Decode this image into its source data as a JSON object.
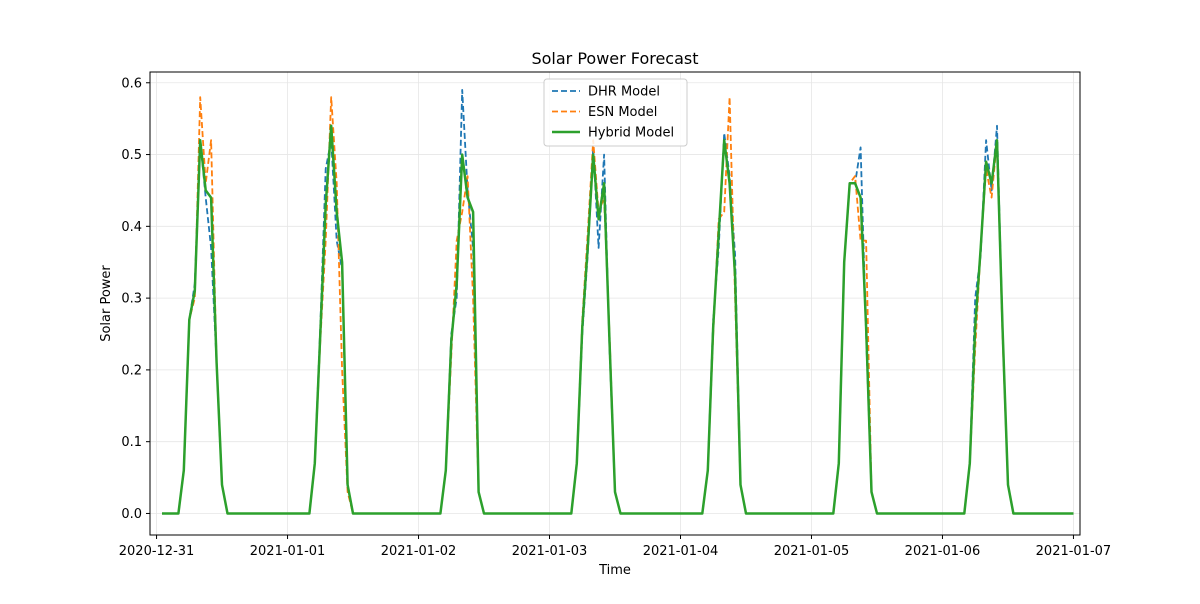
{
  "chart_data": {
    "type": "line",
    "title": "Solar Power Forecast",
    "xlabel": "Time",
    "ylabel": "Solar Power",
    "grid": true,
    "legend_position": "top-center",
    "x_unit": "hours since 2020-12-31 00:00",
    "xlim": [
      -1.2,
      169.2
    ],
    "ylim": [
      -0.03,
      0.615
    ],
    "x_ticks": [
      {
        "value": 0,
        "label": "2020-12-31"
      },
      {
        "value": 24,
        "label": "2021-01-01"
      },
      {
        "value": 48,
        "label": "2021-01-02"
      },
      {
        "value": 72,
        "label": "2021-01-03"
      },
      {
        "value": 96,
        "label": "2021-01-04"
      },
      {
        "value": 120,
        "label": "2021-01-05"
      },
      {
        "value": 144,
        "label": "2021-01-06"
      },
      {
        "value": 168,
        "label": "2021-01-07"
      }
    ],
    "y_ticks": [
      {
        "value": 0.0,
        "label": "0.0"
      },
      {
        "value": 0.1,
        "label": "0.1"
      },
      {
        "value": 0.2,
        "label": "0.2"
      },
      {
        "value": 0.3,
        "label": "0.3"
      },
      {
        "value": 0.4,
        "label": "0.4"
      },
      {
        "value": 0.5,
        "label": "0.5"
      },
      {
        "value": 0.6,
        "label": "0.6"
      }
    ],
    "series": [
      {
        "name": "DHR Model",
        "color": "#1f77b4",
        "style": "dashed",
        "points": [
          [
            1,
            0
          ],
          [
            3,
            0
          ],
          [
            4,
            0
          ],
          [
            5,
            0.06
          ],
          [
            6,
            0.27
          ],
          [
            7,
            0.32
          ],
          [
            8,
            0.52
          ],
          [
            9,
            0.44
          ],
          [
            10,
            0.37
          ],
          [
            11,
            0.21
          ],
          [
            12,
            0.04
          ],
          [
            13,
            0
          ],
          [
            16,
            0
          ],
          [
            20,
            0
          ],
          [
            24,
            0
          ],
          [
            28,
            0
          ],
          [
            29,
            0.07
          ],
          [
            30,
            0.26
          ],
          [
            31,
            0.48
          ],
          [
            32,
            0.52
          ],
          [
            33,
            0.38
          ],
          [
            34,
            0.34
          ],
          [
            35,
            0.04
          ],
          [
            36,
            0
          ],
          [
            40,
            0
          ],
          [
            44,
            0
          ],
          [
            48,
            0
          ],
          [
            52,
            0
          ],
          [
            53,
            0.06
          ],
          [
            54,
            0.25
          ],
          [
            55,
            0.3
          ],
          [
            56,
            0.59
          ],
          [
            57,
            0.45
          ],
          [
            58,
            0.37
          ],
          [
            59,
            0.03
          ],
          [
            60,
            0
          ],
          [
            64,
            0
          ],
          [
            68,
            0
          ],
          [
            72,
            0
          ],
          [
            76,
            0
          ],
          [
            77,
            0.07
          ],
          [
            78,
            0.25
          ],
          [
            79,
            0.36
          ],
          [
            80,
            0.51
          ],
          [
            81,
            0.37
          ],
          [
            82,
            0.5
          ],
          [
            83,
            0.23
          ],
          [
            84,
            0.03
          ],
          [
            85,
            0
          ],
          [
            88,
            0
          ],
          [
            92,
            0
          ],
          [
            96,
            0
          ],
          [
            100,
            0
          ],
          [
            101,
            0.06
          ],
          [
            102,
            0.27
          ],
          [
            103,
            0.37
          ],
          [
            104,
            0.53
          ],
          [
            105,
            0.47
          ],
          [
            106,
            0.36
          ],
          [
            107,
            0.04
          ],
          [
            108,
            0
          ],
          [
            112,
            0
          ],
          [
            116,
            0
          ],
          [
            120,
            0
          ],
          [
            124,
            0
          ],
          [
            125,
            0.07
          ],
          [
            126,
            0.35
          ],
          [
            127,
            0.46
          ],
          [
            128,
            0.46
          ],
          [
            129,
            0.51
          ],
          [
            130,
            0.25
          ],
          [
            131,
            0.03
          ],
          [
            132,
            0
          ],
          [
            136,
            0
          ],
          [
            140,
            0
          ],
          [
            144,
            0
          ],
          [
            148,
            0
          ],
          [
            149,
            0.07
          ],
          [
            150,
            0.3
          ],
          [
            151,
            0.36
          ],
          [
            152,
            0.52
          ],
          [
            153,
            0.45
          ],
          [
            154,
            0.54
          ],
          [
            155,
            0.26
          ],
          [
            156,
            0.04
          ],
          [
            157,
            0
          ],
          [
            160,
            0
          ],
          [
            164,
            0
          ],
          [
            168,
            0
          ]
        ]
      },
      {
        "name": "ESN Model",
        "color": "#ff7f0e",
        "style": "dashed",
        "points": [
          [
            1,
            0
          ],
          [
            3,
            0
          ],
          [
            4,
            0
          ],
          [
            5,
            0.06
          ],
          [
            6,
            0.27
          ],
          [
            7,
            0.3
          ],
          [
            8,
            0.58
          ],
          [
            9,
            0.46
          ],
          [
            10,
            0.52
          ],
          [
            11,
            0.21
          ],
          [
            12,
            0.04
          ],
          [
            13,
            0
          ],
          [
            16,
            0
          ],
          [
            20,
            0
          ],
          [
            24,
            0
          ],
          [
            28,
            0
          ],
          [
            29,
            0.07
          ],
          [
            30,
            0.24
          ],
          [
            31,
            0.38
          ],
          [
            32,
            0.58
          ],
          [
            33,
            0.46
          ],
          [
            34,
            0.2
          ],
          [
            35,
            0.03
          ],
          [
            36,
            0
          ],
          [
            40,
            0
          ],
          [
            44,
            0
          ],
          [
            48,
            0
          ],
          [
            52,
            0
          ],
          [
            53,
            0.06
          ],
          [
            54,
            0.22
          ],
          [
            55,
            0.38
          ],
          [
            56,
            0.42
          ],
          [
            57,
            0.47
          ],
          [
            58,
            0.3
          ],
          [
            59,
            0.03
          ],
          [
            60,
            0
          ],
          [
            64,
            0
          ],
          [
            68,
            0
          ],
          [
            72,
            0
          ],
          [
            76,
            0
          ],
          [
            77,
            0.07
          ],
          [
            78,
            0.27
          ],
          [
            79,
            0.39
          ],
          [
            80,
            0.52
          ],
          [
            81,
            0.42
          ],
          [
            82,
            0.44
          ],
          [
            83,
            0.25
          ],
          [
            84,
            0.03
          ],
          [
            85,
            0
          ],
          [
            88,
            0
          ],
          [
            92,
            0
          ],
          [
            96,
            0
          ],
          [
            100,
            0
          ],
          [
            101,
            0.06
          ],
          [
            102,
            0.25
          ],
          [
            103,
            0.41
          ],
          [
            104,
            0.42
          ],
          [
            105,
            0.58
          ],
          [
            106,
            0.3
          ],
          [
            107,
            0.04
          ],
          [
            108,
            0
          ],
          [
            112,
            0
          ],
          [
            116,
            0
          ],
          [
            120,
            0
          ],
          [
            124,
            0
          ],
          [
            125,
            0.07
          ],
          [
            126,
            0.35
          ],
          [
            127,
            0.46
          ],
          [
            128,
            0.47
          ],
          [
            129,
            0.38
          ],
          [
            130,
            0.38
          ],
          [
            131,
            0.03
          ],
          [
            132,
            0
          ],
          [
            136,
            0
          ],
          [
            140,
            0
          ],
          [
            144,
            0
          ],
          [
            148,
            0
          ],
          [
            149,
            0.07
          ],
          [
            150,
            0.23
          ],
          [
            151,
            0.37
          ],
          [
            152,
            0.48
          ],
          [
            153,
            0.44
          ],
          [
            154,
            0.52
          ],
          [
            155,
            0.25
          ],
          [
            156,
            0.04
          ],
          [
            157,
            0
          ],
          [
            160,
            0
          ],
          [
            164,
            0
          ],
          [
            168,
            0
          ]
        ]
      },
      {
        "name": "Hybrid Model",
        "color": "#2ca02c",
        "style": "solid",
        "points": [
          [
            1,
            0
          ],
          [
            3,
            0
          ],
          [
            4,
            0
          ],
          [
            5,
            0.06
          ],
          [
            6,
            0.27
          ],
          [
            7,
            0.31
          ],
          [
            8,
            0.52
          ],
          [
            9,
            0.45
          ],
          [
            10,
            0.44
          ],
          [
            11,
            0.21
          ],
          [
            12,
            0.04
          ],
          [
            13,
            0
          ],
          [
            16,
            0
          ],
          [
            20,
            0
          ],
          [
            24,
            0
          ],
          [
            28,
            0
          ],
          [
            29,
            0.07
          ],
          [
            30,
            0.25
          ],
          [
            31,
            0.43
          ],
          [
            32,
            0.54
          ],
          [
            33,
            0.42
          ],
          [
            34,
            0.35
          ],
          [
            35,
            0.04
          ],
          [
            36,
            0
          ],
          [
            40,
            0
          ],
          [
            44,
            0
          ],
          [
            48,
            0
          ],
          [
            52,
            0
          ],
          [
            53,
            0.06
          ],
          [
            54,
            0.24
          ],
          [
            55,
            0.32
          ],
          [
            56,
            0.5
          ],
          [
            57,
            0.44
          ],
          [
            58,
            0.42
          ],
          [
            59,
            0.03
          ],
          [
            60,
            0
          ],
          [
            64,
            0
          ],
          [
            68,
            0
          ],
          [
            72,
            0
          ],
          [
            76,
            0
          ],
          [
            77,
            0.07
          ],
          [
            78,
            0.26
          ],
          [
            79,
            0.37
          ],
          [
            80,
            0.5
          ],
          [
            81,
            0.41
          ],
          [
            82,
            0.46
          ],
          [
            83,
            0.24
          ],
          [
            84,
            0.03
          ],
          [
            85,
            0
          ],
          [
            88,
            0
          ],
          [
            92,
            0
          ],
          [
            96,
            0
          ],
          [
            100,
            0
          ],
          [
            101,
            0.06
          ],
          [
            102,
            0.26
          ],
          [
            103,
            0.39
          ],
          [
            104,
            0.52
          ],
          [
            105,
            0.46
          ],
          [
            106,
            0.33
          ],
          [
            107,
            0.04
          ],
          [
            108,
            0
          ],
          [
            112,
            0
          ],
          [
            116,
            0
          ],
          [
            120,
            0
          ],
          [
            124,
            0
          ],
          [
            125,
            0.07
          ],
          [
            126,
            0.35
          ],
          [
            127,
            0.46
          ],
          [
            128,
            0.46
          ],
          [
            129,
            0.44
          ],
          [
            130,
            0.26
          ],
          [
            131,
            0.03
          ],
          [
            132,
            0
          ],
          [
            136,
            0
          ],
          [
            140,
            0
          ],
          [
            144,
            0
          ],
          [
            148,
            0
          ],
          [
            149,
            0.07
          ],
          [
            150,
            0.26
          ],
          [
            151,
            0.37
          ],
          [
            152,
            0.49
          ],
          [
            153,
            0.46
          ],
          [
            154,
            0.52
          ],
          [
            155,
            0.26
          ],
          [
            156,
            0.04
          ],
          [
            157,
            0
          ],
          [
            160,
            0
          ],
          [
            164,
            0
          ],
          [
            168,
            0
          ]
        ]
      }
    ]
  }
}
